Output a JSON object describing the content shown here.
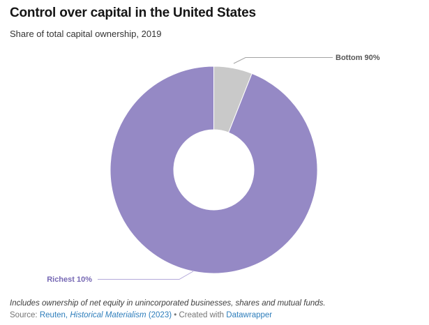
{
  "header": {
    "title": "Control over capital in the United States",
    "subtitle": "Share of total capital ownership, 2019"
  },
  "chart_data": {
    "type": "pie",
    "subtype": "donut",
    "title": "Control over capital in the United States",
    "subtitle": "Share of total capital ownership, 2019",
    "categories": [
      "Bottom 90%",
      "Richest 10%"
    ],
    "values": [
      6,
      94
    ],
    "unit": "%",
    "start_angle_deg": 0,
    "direction": "clockwise",
    "slice_colors": [
      "#c9c9c9",
      "#9589c5"
    ],
    "label_colors": [
      "#565656",
      "#7668b4"
    ],
    "leader_colors": [
      "#a3a3a3",
      "#b4a8da"
    ],
    "hole_color": "#ffffff",
    "legend_position": "outside-labels"
  },
  "footer": {
    "footnote": "Includes ownership of net equity in unincorporated businesses, shares and mutual funds.",
    "source_label": "Source:",
    "link_author": "Reuten,",
    "link_work": "Historical Materialism",
    "link_year": "(2023)",
    "separator": "•",
    "created_with": "Created with",
    "datawrapper_link": "Datawrapper",
    "link_color": "#2d7dbb"
  }
}
